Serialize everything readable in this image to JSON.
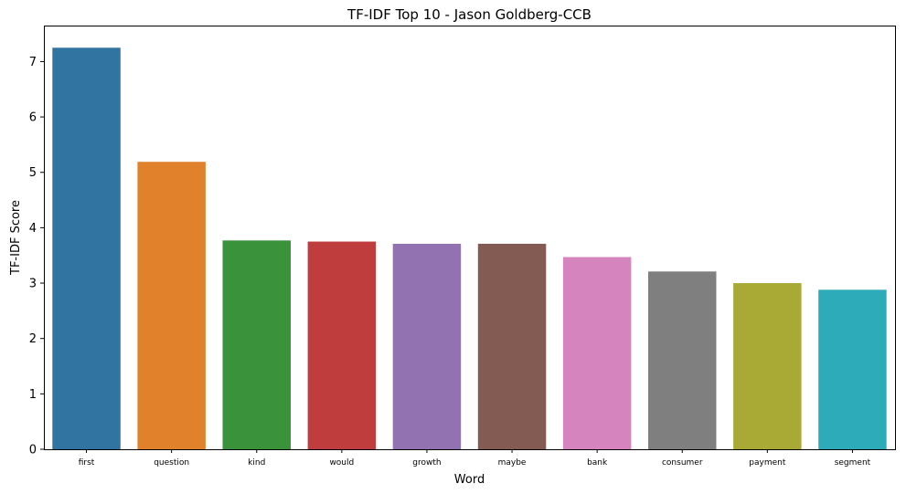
{
  "chart_data": {
    "type": "bar",
    "title": "TF-IDF Top 10 - Jason Goldberg-CCB",
    "xlabel": "Word",
    "ylabel": "TF-IDF Score",
    "categories": [
      "first",
      "question",
      "kind",
      "would",
      "growth",
      "maybe",
      "bank",
      "consumer",
      "payment",
      "segment"
    ],
    "values": [
      7.25,
      5.19,
      3.77,
      3.75,
      3.71,
      3.71,
      3.47,
      3.21,
      3.0,
      2.88
    ],
    "colors": [
      "#3274a1",
      "#e1812c",
      "#3a923a",
      "#c03d3e",
      "#9372b2",
      "#845b53",
      "#d684bd",
      "#7f7f7f",
      "#a9aa35",
      "#2eabb8"
    ],
    "ylim": [
      0,
      7.65
    ],
    "yticks": [
      0,
      1,
      2,
      3,
      4,
      5,
      6,
      7
    ],
    "grid": false,
    "legend": "none"
  }
}
